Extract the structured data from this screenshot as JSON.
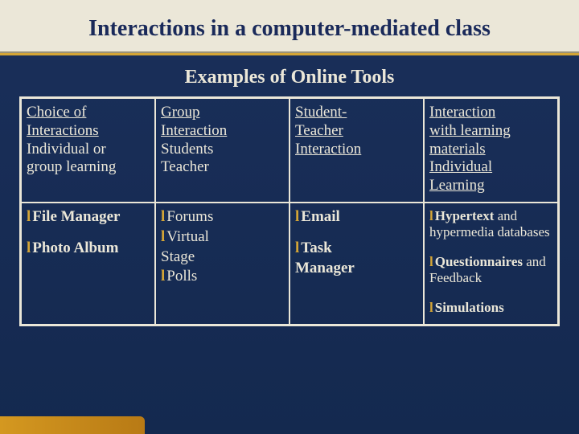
{
  "title": "Interactions in a computer-mediated class",
  "subtitle": "Examples of Online Tools",
  "columns": [
    {
      "header_lines": [
        "Choice of",
        " Interactions"
      ],
      "sub_lines": [
        "Individual or",
        " group learning"
      ],
      "tools": [
        {
          "text": "File Manager",
          "bold": true
        },
        {
          "spacer": true
        },
        {
          "text": "Photo Album",
          "bold": true
        }
      ]
    },
    {
      "header_lines": [
        "Group",
        " Interaction"
      ],
      "sub_lines": [
        "Students",
        "Teacher"
      ],
      "tools": [
        {
          "text": "Forums",
          "bold": false
        },
        {
          "text": "Virtual",
          "bold": false,
          "cont": "Stage"
        },
        {
          "text": "Polls",
          "bold": false
        }
      ]
    },
    {
      "header_lines": [
        " Student-",
        "Teacher",
        " Interaction"
      ],
      "sub_lines": [],
      "tools": [
        {
          "text": "Email",
          "bold": true
        },
        {
          "spacer": true
        },
        {
          "text": "Task",
          "bold": true,
          "cont_bold": "Manager"
        }
      ]
    },
    {
      "header_lines": [
        "Interaction",
        "with learning",
        " materials"
      ],
      "sub_lines": [
        "Individual",
        " Learning"
      ],
      "sub_underlined": true,
      "tools": [
        {
          "text": "Hypertext",
          "bold": true,
          "tail": " and hypermedia databases",
          "small": true
        },
        {
          "spacer": true
        },
        {
          "text": "Questionnaires",
          "bold": true,
          "tail": " and Feedback",
          "small": true
        },
        {
          "spacer": true
        },
        {
          "text": "Simulations",
          "bold": true,
          "small": true
        }
      ]
    }
  ]
}
